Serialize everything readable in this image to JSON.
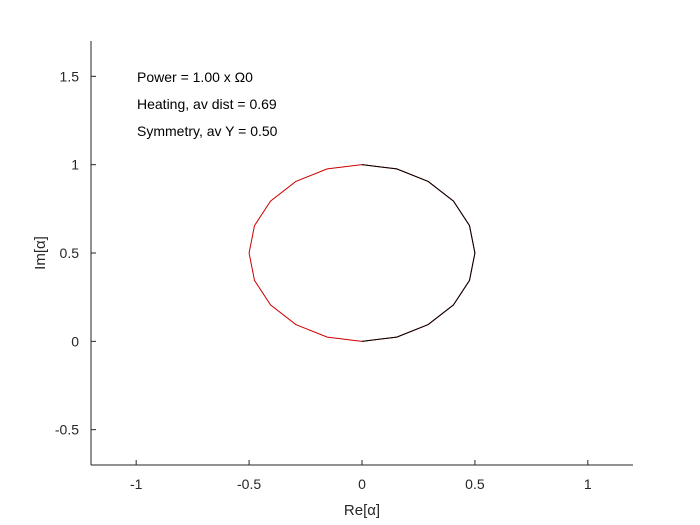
{
  "chart_data": {
    "type": "line",
    "xlabel": "Re[α]",
    "ylabel": "Im[α]",
    "xlim": [
      -1.2,
      1.2
    ],
    "ylim": [
      -0.7,
      1.7
    ],
    "xticks": [
      -1,
      -0.5,
      0,
      0.5,
      1
    ],
    "xtick_labels": [
      "-1",
      "-0.5",
      "0",
      "0.5",
      "1"
    ],
    "yticks": [
      -0.5,
      0,
      0.5,
      1,
      1.5
    ],
    "ytick_labels": [
      "-0.5",
      "0",
      "0.5",
      "1",
      "1.5"
    ],
    "grid": false,
    "annotations": [
      "Power = 1.00 x Ω0",
      "Heating, av dist = 0.69",
      "Symmetry, av Y = 0.50"
    ],
    "series": [
      {
        "name": "left-half (red)",
        "color": "#cc0000",
        "x": [
          0,
          0.154,
          0.293,
          0.405,
          0.476,
          0.5,
          0.476,
          0.405,
          0.293,
          0.154,
          0,
          -0.154,
          -0.293,
          -0.405,
          -0.476,
          -0.5,
          -0.476,
          -0.405,
          -0.293,
          -0.154,
          0
        ],
        "y": [
          0,
          0.024,
          0.095,
          0.206,
          0.345,
          0.5,
          0.655,
          0.794,
          0.905,
          0.976,
          1.0,
          0.976,
          0.905,
          0.794,
          0.655,
          0.5,
          0.345,
          0.206,
          0.095,
          0.024,
          0
        ]
      },
      {
        "name": "right-half (black)",
        "color": "#000000",
        "x": [
          0,
          0.154,
          0.293,
          0.405,
          0.476,
          0.5,
          0.476,
          0.405,
          0.293,
          0.154,
          0
        ],
        "y": [
          0,
          0.024,
          0.095,
          0.206,
          0.345,
          0.5,
          0.655,
          0.794,
          0.905,
          0.976,
          1.0
        ]
      }
    ]
  }
}
